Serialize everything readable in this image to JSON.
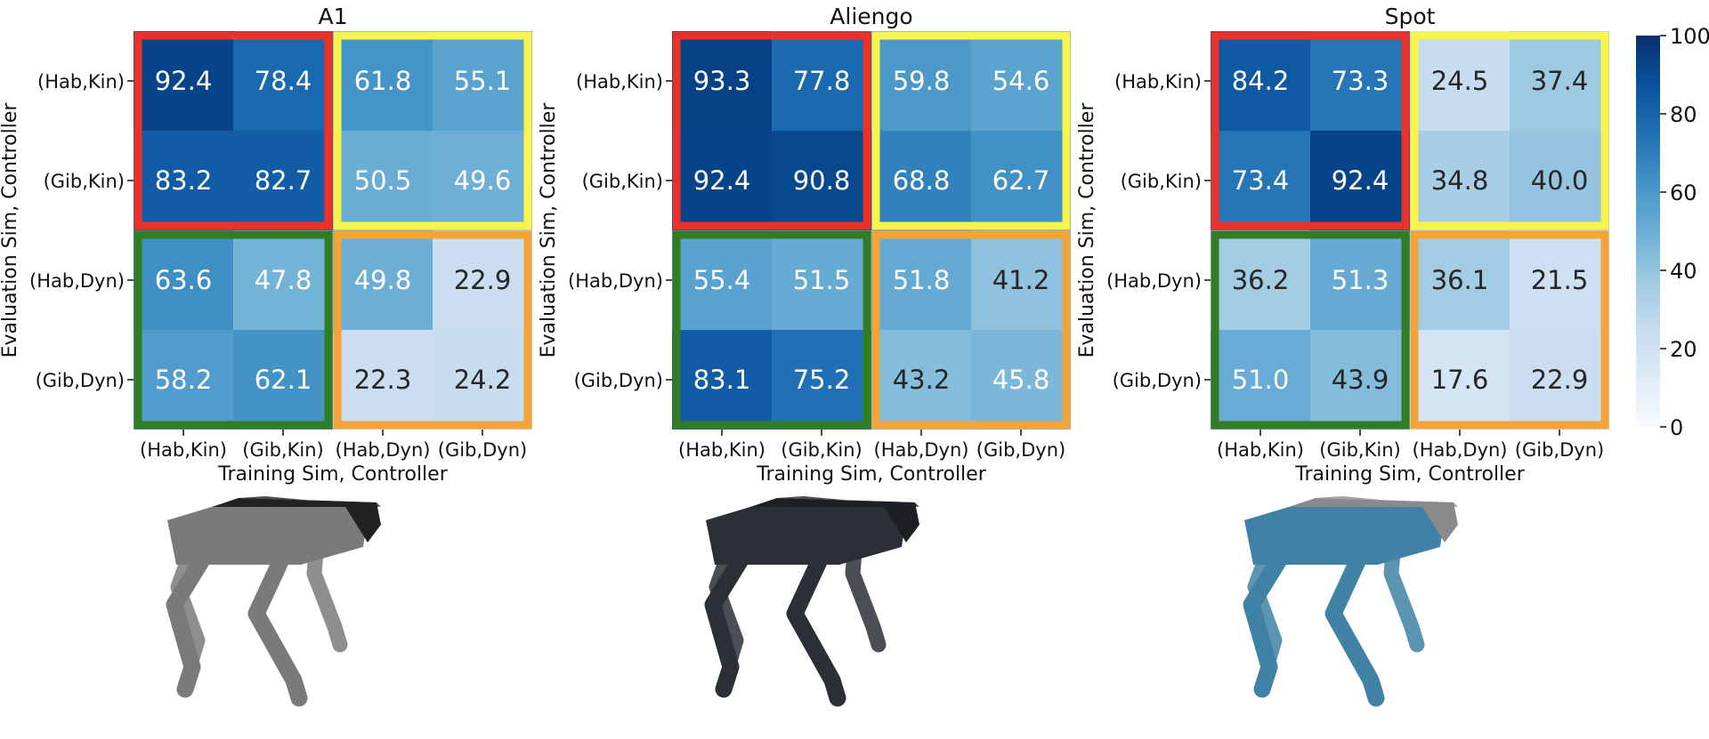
{
  "chart_data": [
    {
      "type": "heatmap",
      "title": "A1",
      "xlabel": "Training Sim, Controller",
      "ylabel": "Evaluation Sim, Controller",
      "x_categories": [
        "(Hab,Kin)",
        "(Gib,Kin)",
        "(Hab,Dyn)",
        "(Gib,Dyn)"
      ],
      "y_categories": [
        "(Hab,Kin)",
        "(Gib,Kin)",
        "(Hab,Dyn)",
        "(Gib,Dyn)"
      ],
      "values": [
        [
          92.4,
          78.4,
          61.8,
          55.1
        ],
        [
          83.2,
          82.7,
          50.5,
          49.6
        ],
        [
          63.6,
          47.8,
          49.8,
          22.9
        ],
        [
          58.2,
          62.1,
          22.3,
          24.2
        ]
      ],
      "vmin": 0,
      "vmax": 100,
      "colormap": "Blues"
    },
    {
      "type": "heatmap",
      "title": "Aliengo",
      "xlabel": "Training Sim, Controller",
      "ylabel": "Evaluation Sim, Controller",
      "x_categories": [
        "(Hab,Kin)",
        "(Gib,Kin)",
        "(Hab,Dyn)",
        "(Gib,Dyn)"
      ],
      "y_categories": [
        "(Hab,Kin)",
        "(Gib,Kin)",
        "(Hab,Dyn)",
        "(Gib,Dyn)"
      ],
      "values": [
        [
          93.3,
          77.8,
          59.8,
          54.6
        ],
        [
          92.4,
          90.8,
          68.8,
          62.7
        ],
        [
          55.4,
          51.5,
          51.8,
          41.2
        ],
        [
          83.1,
          75.2,
          43.2,
          45.8
        ]
      ],
      "vmin": 0,
      "vmax": 100,
      "colormap": "Blues"
    },
    {
      "type": "heatmap",
      "title": "Spot",
      "xlabel": "Training Sim, Controller",
      "ylabel": "Evaluation Sim, Controller",
      "x_categories": [
        "(Hab,Kin)",
        "(Gib,Kin)",
        "(Hab,Dyn)",
        "(Gib,Dyn)"
      ],
      "y_categories": [
        "(Hab,Kin)",
        "(Gib,Kin)",
        "(Hab,Dyn)",
        "(Gib,Dyn)"
      ],
      "values": [
        [
          84.2,
          73.3,
          24.5,
          37.4
        ],
        [
          73.4,
          92.4,
          34.8,
          40.0
        ],
        [
          36.2,
          51.3,
          36.1,
          21.5
        ],
        [
          51.0,
          43.9,
          17.6,
          22.9
        ]
      ],
      "vmin": 0,
      "vmax": 100,
      "colormap": "Blues"
    }
  ],
  "colorbar": {
    "ticks": [
      "0",
      "20",
      "40",
      "60",
      "80",
      "100"
    ],
    "vmin": 0,
    "vmax": 100
  },
  "quadrant_colors": {
    "top_left": "#e8322a",
    "top_right": "#f7f44e",
    "bottom_left": "#317c24",
    "bottom_right": "#f2a43a"
  },
  "robots": [
    {
      "name": "a1-robot-image",
      "body_color": "#7a7a7a",
      "cover_color": "#222222"
    },
    {
      "name": "aliengo-robot-image",
      "body_color": "#2b2f36",
      "cover_color": "#1d1f24"
    },
    {
      "name": "spot-robot-image",
      "body_color": "#3f82a6",
      "cover_color": "#8a8a8a"
    }
  ]
}
